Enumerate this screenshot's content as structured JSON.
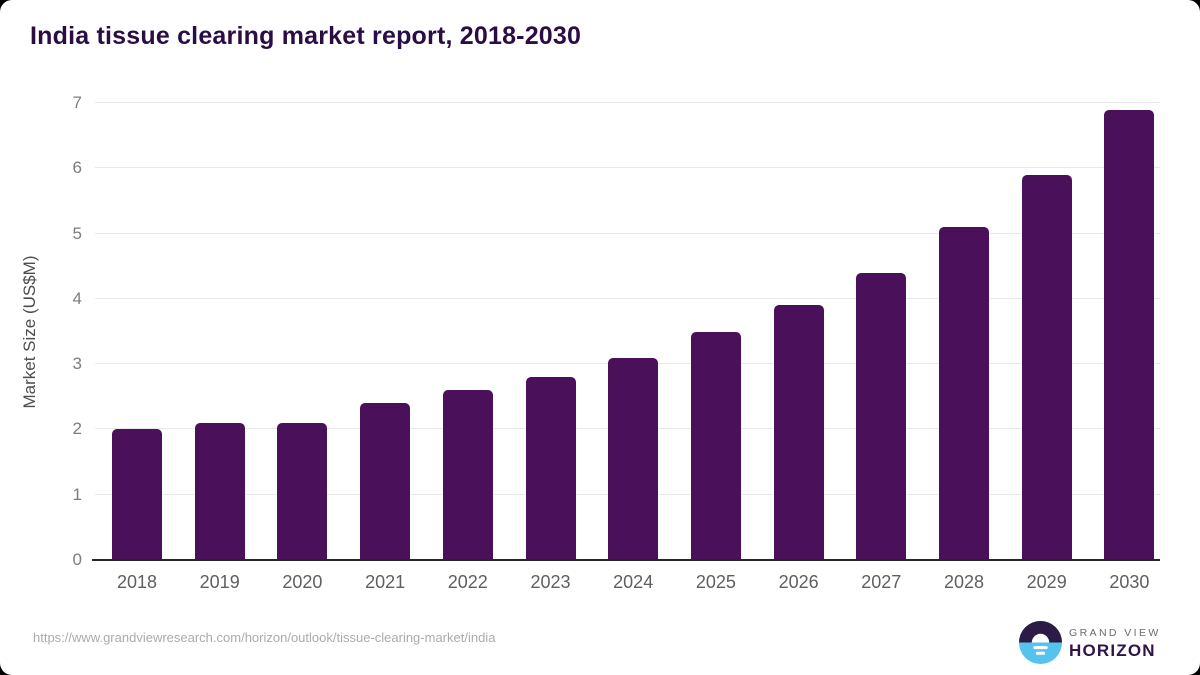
{
  "title": "India tissue clearing market report, 2018-2030",
  "chart_data": {
    "type": "bar",
    "title": "India tissue clearing market report, 2018-2030",
    "categories": [
      "2018",
      "2019",
      "2020",
      "2021",
      "2022",
      "2023",
      "2024",
      "2025",
      "2026",
      "2027",
      "2028",
      "2029",
      "2030"
    ],
    "values": [
      2.0,
      2.1,
      2.1,
      2.4,
      2.6,
      2.8,
      3.1,
      3.5,
      3.9,
      4.4,
      5.1,
      5.9,
      6.9
    ],
    "xlabel": "",
    "ylabel": "Market Size (US$M)",
    "ylim": [
      0,
      7
    ],
    "yticks": [
      0,
      1,
      2,
      3,
      4,
      5,
      6,
      7
    ],
    "grid": true,
    "legend": false,
    "bar_color": "#4a1059"
  },
  "colors": {
    "bar": "#4a1059",
    "title_text": "#2a0d45",
    "axis_line": "#262626",
    "gridline": "#e9e9e9",
    "tick_text": "#5f5f5f",
    "logo_blue": "#56c3ee",
    "logo_dark": "#2b1b45"
  },
  "footer": {
    "source_url": "https://www.grandviewresearch.com/horizon/outlook/tissue-clearing-market/india",
    "logo_line1": "GRAND VIEW",
    "logo_line2": "HORIZON"
  }
}
